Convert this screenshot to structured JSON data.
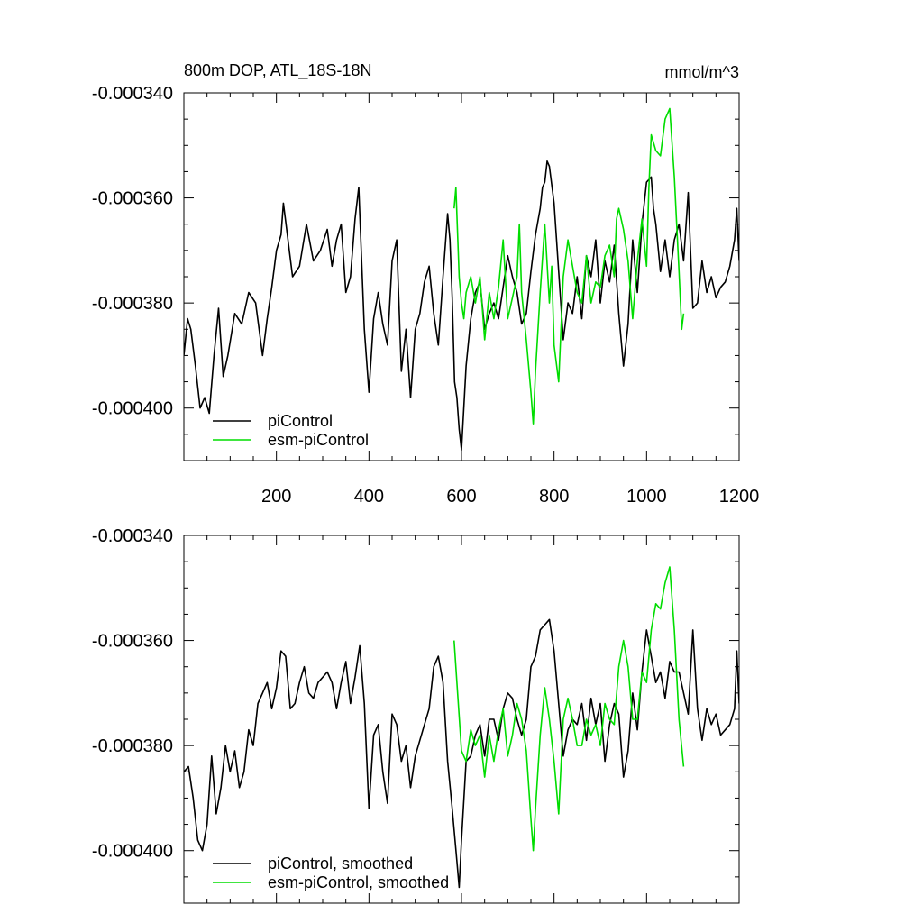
{
  "header": {
    "title": "800m DOP, ATL_18S-18N",
    "units": "mmol/m^3"
  },
  "colors": {
    "piControl": "#000000",
    "esm_piControl": "#00dd00"
  },
  "chart_data": [
    {
      "type": "line",
      "title": "800m DOP, ATL_18S-18N",
      "units": "mmol/m^3",
      "xlim": [
        0,
        1200
      ],
      "ylim": [
        -0.00041,
        -0.00034
      ],
      "x_ticks": [
        200,
        400,
        600,
        800,
        1000,
        1200
      ],
      "x_tick_labels": [
        "200",
        "400",
        "600",
        "800",
        "1000",
        "1200"
      ],
      "y_ticks": [
        -0.00034,
        -0.00036,
        -0.00038,
        -0.0004
      ],
      "y_tick_labels": [
        "-0.000340",
        "-0.000360",
        "-0.000380",
        "-0.000400"
      ],
      "legend": [
        "piControl",
        "esm-piControl"
      ],
      "legend_position": "bottom-left",
      "series": [
        {
          "name": "piControl",
          "x": [
            0,
            8,
            15,
            25,
            35,
            45,
            55,
            65,
            75,
            85,
            95,
            110,
            125,
            140,
            155,
            170,
            180,
            190,
            200,
            210,
            215,
            225,
            235,
            250,
            265,
            280,
            295,
            310,
            320,
            330,
            340,
            350,
            360,
            370,
            378,
            390,
            400,
            410,
            420,
            430,
            440,
            450,
            460,
            470,
            480,
            490,
            500,
            510,
            520,
            530,
            540,
            550,
            560,
            570,
            575,
            580,
            585,
            590,
            595,
            600,
            610,
            620,
            630,
            640,
            650,
            660,
            670,
            680,
            690,
            700,
            710,
            720,
            730,
            740,
            750,
            760,
            770,
            775,
            780,
            785,
            790,
            800,
            810,
            820,
            830,
            840,
            850,
            860,
            870,
            880,
            890,
            900,
            910,
            920,
            930,
            940,
            950,
            960,
            970,
            980,
            990,
            1000,
            1010,
            1015,
            1020,
            1030,
            1040,
            1050,
            1060,
            1070,
            1080,
            1090,
            1100,
            1110,
            1120,
            1130,
            1140,
            1150,
            1160,
            1170,
            1180,
            1190,
            1195,
            1200
          ],
          "values": [
            -0.00039,
            -0.000383,
            -0.000385,
            -0.000392,
            -0.0004,
            -0.000398,
            -0.000401,
            -0.00039,
            -0.000381,
            -0.000394,
            -0.00039,
            -0.000382,
            -0.000384,
            -0.000378,
            -0.00038,
            -0.00039,
            -0.000383,
            -0.000377,
            -0.00037,
            -0.000367,
            -0.000361,
            -0.000368,
            -0.000375,
            -0.000373,
            -0.000365,
            -0.000372,
            -0.00037,
            -0.000366,
            -0.000373,
            -0.000368,
            -0.000365,
            -0.000378,
            -0.000375,
            -0.000364,
            -0.000358,
            -0.000385,
            -0.000397,
            -0.000383,
            -0.000378,
            -0.000384,
            -0.000388,
            -0.000372,
            -0.000368,
            -0.000393,
            -0.000385,
            -0.000398,
            -0.000385,
            -0.000382,
            -0.000376,
            -0.000373,
            -0.000382,
            -0.000388,
            -0.000375,
            -0.000363,
            -0.000368,
            -0.000379,
            -0.000395,
            -0.000398,
            -0.000404,
            -0.000408,
            -0.000392,
            -0.000383,
            -0.000378,
            -0.000376,
            -0.000385,
            -0.000382,
            -0.00038,
            -0.000383,
            -0.000377,
            -0.000371,
            -0.000375,
            -0.000378,
            -0.000384,
            -0.000382,
            -0.000374,
            -0.000367,
            -0.000362,
            -0.000358,
            -0.000357,
            -0.000353,
            -0.000354,
            -0.000361,
            -0.000374,
            -0.000387,
            -0.00038,
            -0.000382,
            -0.000375,
            -0.000383,
            -0.000371,
            -0.000375,
            -0.000368,
            -0.00038,
            -0.000372,
            -0.000376,
            -0.000369,
            -0.000382,
            -0.000392,
            -0.000384,
            -0.000368,
            -0.000378,
            -0.000365,
            -0.000357,
            -0.000356,
            -0.000362,
            -0.000365,
            -0.000374,
            -0.000368,
            -0.000375,
            -0.000368,
            -0.000365,
            -0.000372,
            -0.000359,
            -0.000381,
            -0.00038,
            -0.000372,
            -0.000378,
            -0.000375,
            -0.000379,
            -0.000377,
            -0.000376,
            -0.000373,
            -0.000368,
            -0.000362,
            -0.000372
          ],
          "color": "#000000"
        },
        {
          "name": "esm-piControl",
          "x": [
            584,
            588,
            595,
            600,
            605,
            610,
            620,
            630,
            640,
            650,
            660,
            670,
            680,
            690,
            700,
            710,
            720,
            725,
            730,
            740,
            750,
            755,
            760,
            770,
            780,
            790,
            795,
            800,
            810,
            820,
            830,
            840,
            850,
            860,
            870,
            880,
            890,
            900,
            910,
            920,
            930,
            935,
            940,
            950,
            960,
            970,
            980,
            990,
            1000,
            1005,
            1010,
            1020,
            1030,
            1040,
            1050,
            1060,
            1070,
            1076,
            1080
          ],
          "values": [
            -0.000362,
            -0.000358,
            -0.000375,
            -0.00038,
            -0.000383,
            -0.000378,
            -0.000375,
            -0.00038,
            -0.000375,
            -0.000387,
            -0.000378,
            -0.000383,
            -0.000377,
            -0.000368,
            -0.000383,
            -0.000379,
            -0.000375,
            -0.000365,
            -0.000378,
            -0.000387,
            -0.000397,
            -0.000403,
            -0.000393,
            -0.000378,
            -0.000365,
            -0.00038,
            -0.000373,
            -0.000388,
            -0.000395,
            -0.000375,
            -0.000368,
            -0.000373,
            -0.000378,
            -0.00038,
            -0.000371,
            -0.00038,
            -0.000376,
            -0.000377,
            -0.000371,
            -0.000369,
            -0.000375,
            -0.000364,
            -0.000362,
            -0.000366,
            -0.000372,
            -0.000383,
            -0.000372,
            -0.000364,
            -0.000373,
            -0.000358,
            -0.000348,
            -0.000351,
            -0.000352,
            -0.000345,
            -0.000343,
            -0.000356,
            -0.000374,
            -0.000385,
            -0.000382
          ],
          "color": "#00dd00"
        }
      ]
    },
    {
      "type": "line",
      "title": "",
      "xlim": [
        0,
        1200
      ],
      "ylim": [
        -0.00041,
        -0.00034
      ],
      "x_ticks": [
        200,
        400,
        600,
        800,
        1000,
        1200
      ],
      "x_tick_labels": [],
      "y_ticks": [
        -0.00034,
        -0.00036,
        -0.00038,
        -0.0004
      ],
      "y_tick_labels": [
        "-0.000340",
        "-0.000360",
        "-0.000380",
        "-0.000400"
      ],
      "legend": [
        "piControl, smoothed",
        "esm-piControl, smoothed"
      ],
      "legend_position": "bottom-left",
      "series": [
        {
          "name": "piControl, smoothed",
          "x": [
            0,
            10,
            20,
            30,
            40,
            50,
            60,
            70,
            80,
            90,
            100,
            110,
            120,
            130,
            140,
            150,
            160,
            170,
            180,
            190,
            200,
            210,
            220,
            230,
            240,
            250,
            260,
            270,
            280,
            290,
            300,
            310,
            320,
            330,
            340,
            350,
            360,
            370,
            380,
            390,
            400,
            410,
            420,
            430,
            440,
            450,
            460,
            470,
            480,
            490,
            500,
            510,
            520,
            530,
            540,
            550,
            560,
            570,
            580,
            590,
            595,
            600,
            610,
            620,
            630,
            640,
            650,
            660,
            670,
            680,
            690,
            700,
            710,
            720,
            730,
            740,
            750,
            760,
            770,
            780,
            790,
            800,
            810,
            820,
            830,
            840,
            850,
            860,
            870,
            880,
            890,
            900,
            910,
            920,
            930,
            940,
            950,
            960,
            970,
            980,
            990,
            1000,
            1010,
            1020,
            1030,
            1040,
            1050,
            1060,
            1070,
            1080,
            1090,
            1100,
            1110,
            1120,
            1130,
            1140,
            1150,
            1160,
            1170,
            1180,
            1190,
            1195,
            1200
          ],
          "values": [
            -0.000385,
            -0.000384,
            -0.00039,
            -0.000398,
            -0.0004,
            -0.000395,
            -0.000382,
            -0.000393,
            -0.000388,
            -0.00038,
            -0.000385,
            -0.000381,
            -0.000388,
            -0.000385,
            -0.000377,
            -0.00038,
            -0.000372,
            -0.00037,
            -0.000368,
            -0.000373,
            -0.000369,
            -0.000362,
            -0.000363,
            -0.000373,
            -0.000372,
            -0.000368,
            -0.000365,
            -0.00037,
            -0.000371,
            -0.000368,
            -0.000367,
            -0.000366,
            -0.000368,
            -0.000373,
            -0.000368,
            -0.000364,
            -0.000372,
            -0.000367,
            -0.000361,
            -0.000372,
            -0.000392,
            -0.000378,
            -0.000376,
            -0.000385,
            -0.000391,
            -0.000374,
            -0.000376,
            -0.000383,
            -0.00038,
            -0.000388,
            -0.000382,
            -0.000379,
            -0.000376,
            -0.000373,
            -0.000365,
            -0.000363,
            -0.000368,
            -0.000383,
            -0.000392,
            -0.000402,
            -0.000407,
            -0.000398,
            -0.000383,
            -0.000382,
            -0.000378,
            -0.000376,
            -0.000382,
            -0.000375,
            -0.000375,
            -0.000379,
            -0.000373,
            -0.00037,
            -0.000371,
            -0.000375,
            -0.000378,
            -0.000375,
            -0.000365,
            -0.000363,
            -0.000358,
            -0.000357,
            -0.000356,
            -0.000362,
            -0.000372,
            -0.000382,
            -0.000377,
            -0.000375,
            -0.000376,
            -0.000372,
            -0.000379,
            -0.000371,
            -0.000376,
            -0.000372,
            -0.000383,
            -0.000376,
            -0.000372,
            -0.000374,
            -0.000386,
            -0.000381,
            -0.00037,
            -0.000377,
            -0.000366,
            -0.000358,
            -0.000363,
            -0.000368,
            -0.000366,
            -0.000371,
            -0.000364,
            -0.000366,
            -0.000366,
            -0.00037,
            -0.000374,
            -0.000358,
            -0.000373,
            -0.000379,
            -0.000373,
            -0.000376,
            -0.000374,
            -0.000378,
            -0.000377,
            -0.000376,
            -0.000373,
            -0.000362,
            -0.000372
          ],
          "color": "#000000"
        },
        {
          "name": "esm-piControl, smoothed",
          "x": [
            584,
            590,
            600,
            610,
            620,
            630,
            640,
            650,
            660,
            670,
            680,
            690,
            700,
            710,
            720,
            730,
            740,
            750,
            755,
            760,
            770,
            780,
            790,
            800,
            810,
            820,
            830,
            840,
            850,
            860,
            870,
            880,
            890,
            900,
            910,
            920,
            930,
            940,
            950,
            960,
            970,
            980,
            990,
            1000,
            1010,
            1020,
            1030,
            1040,
            1050,
            1060,
            1070,
            1080
          ],
          "values": [
            -0.00036,
            -0.000368,
            -0.000381,
            -0.000383,
            -0.000377,
            -0.00038,
            -0.000378,
            -0.000386,
            -0.000378,
            -0.000383,
            -0.000377,
            -0.000373,
            -0.000382,
            -0.000378,
            -0.000372,
            -0.000375,
            -0.000381,
            -0.000394,
            -0.0004,
            -0.000392,
            -0.000378,
            -0.000369,
            -0.000375,
            -0.000383,
            -0.000393,
            -0.000375,
            -0.000371,
            -0.000375,
            -0.00038,
            -0.00038,
            -0.000375,
            -0.000378,
            -0.000376,
            -0.00038,
            -0.000372,
            -0.000375,
            -0.000376,
            -0.000365,
            -0.00036,
            -0.000365,
            -0.000375,
            -0.000375,
            -0.000366,
            -0.000368,
            -0.000358,
            -0.000353,
            -0.000354,
            -0.000349,
            -0.000346,
            -0.000358,
            -0.000375,
            -0.000384
          ],
          "color": "#00dd00"
        }
      ]
    }
  ]
}
